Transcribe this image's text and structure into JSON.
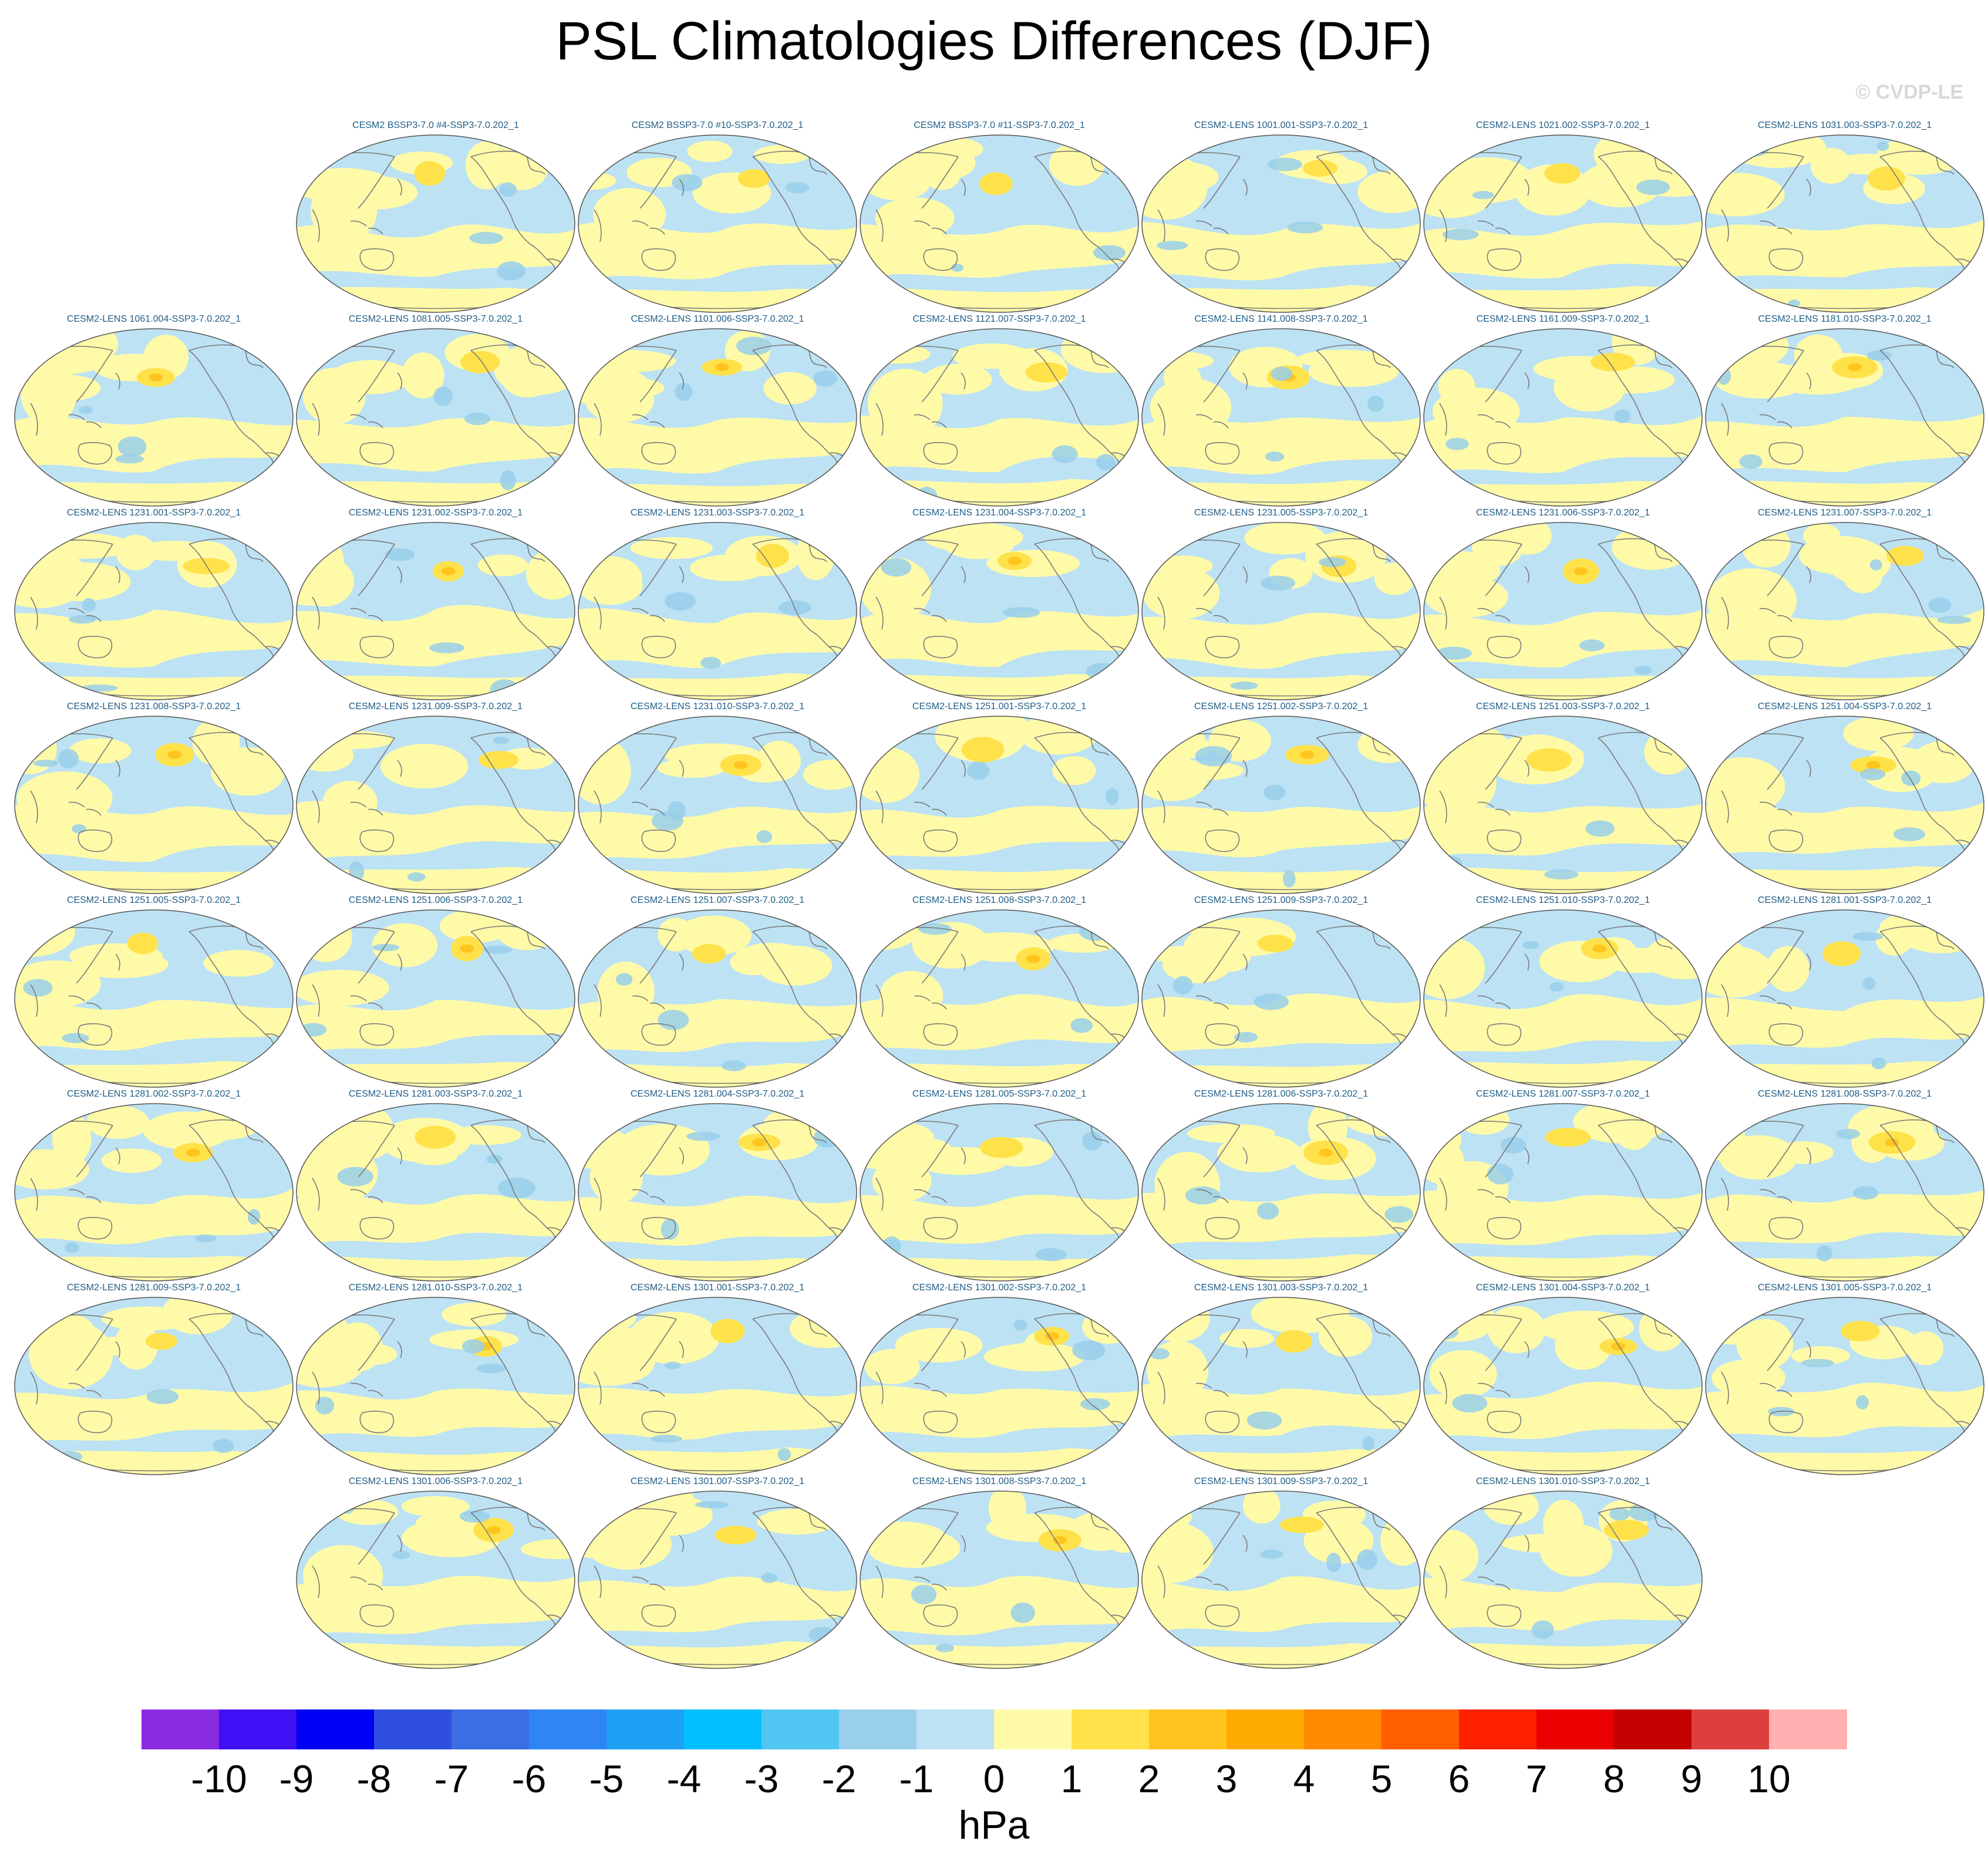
{
  "title": "PSL Climatologies Differences (DJF)",
  "watermark": "© CVDP-LE",
  "map": {
    "projection": "Robinson (Pacific-centered)",
    "icon": "world-map-icon",
    "panels": [
      {
        "label": "CESM2 BSSP3-7.0 #4-SSP3-7.0.202_1",
        "row": 0,
        "col": 1
      },
      {
        "label": "CESM2 BSSP3-7.0 #10-SSP3-7.0.202_1",
        "row": 0,
        "col": 2
      },
      {
        "label": "CESM2 BSSP3-7.0 #11-SSP3-7.0.202_1",
        "row": 0,
        "col": 3
      },
      {
        "label": "CESM2-LENS 1001.001-SSP3-7.0.202_1",
        "row": 0,
        "col": 4
      },
      {
        "label": "CESM2-LENS 1021.002-SSP3-7.0.202_1",
        "row": 0,
        "col": 5
      },
      {
        "label": "CESM2-LENS 1031.003-SSP3-7.0.202_1",
        "row": 0,
        "col": 6
      },
      {
        "label": "CESM2-LENS 1061.004-SSP3-7.0.202_1",
        "row": 1,
        "col": 0
      },
      {
        "label": "CESM2-LENS 1081.005-SSP3-7.0.202_1",
        "row": 1,
        "col": 1
      },
      {
        "label": "CESM2-LENS 1101.006-SSP3-7.0.202_1",
        "row": 1,
        "col": 2
      },
      {
        "label": "CESM2-LENS 1121.007-SSP3-7.0.202_1",
        "row": 1,
        "col": 3
      },
      {
        "label": "CESM2-LENS 1141.008-SSP3-7.0.202_1",
        "row": 1,
        "col": 4
      },
      {
        "label": "CESM2-LENS 1161.009-SSP3-7.0.202_1",
        "row": 1,
        "col": 5
      },
      {
        "label": "CESM2-LENS 1181.010-SSP3-7.0.202_1",
        "row": 1,
        "col": 6
      },
      {
        "label": "CESM2-LENS 1231.001-SSP3-7.0.202_1",
        "row": 2,
        "col": 0
      },
      {
        "label": "CESM2-LENS 1231.002-SSP3-7.0.202_1",
        "row": 2,
        "col": 1
      },
      {
        "label": "CESM2-LENS 1231.003-SSP3-7.0.202_1",
        "row": 2,
        "col": 2
      },
      {
        "label": "CESM2-LENS 1231.004-SSP3-7.0.202_1",
        "row": 2,
        "col": 3
      },
      {
        "label": "CESM2-LENS 1231.005-SSP3-7.0.202_1",
        "row": 2,
        "col": 4
      },
      {
        "label": "CESM2-LENS 1231.006-SSP3-7.0.202_1",
        "row": 2,
        "col": 5
      },
      {
        "label": "CESM2-LENS 1231.007-SSP3-7.0.202_1",
        "row": 2,
        "col": 6
      },
      {
        "label": "CESM2-LENS 1231.008-SSP3-7.0.202_1",
        "row": 3,
        "col": 0
      },
      {
        "label": "CESM2-LENS 1231.009-SSP3-7.0.202_1",
        "row": 3,
        "col": 1
      },
      {
        "label": "CESM2-LENS 1231.010-SSP3-7.0.202_1",
        "row": 3,
        "col": 2
      },
      {
        "label": "CESM2-LENS 1251.001-SSP3-7.0.202_1",
        "row": 3,
        "col": 3
      },
      {
        "label": "CESM2-LENS 1251.002-SSP3-7.0.202_1",
        "row": 3,
        "col": 4
      },
      {
        "label": "CESM2-LENS 1251.003-SSP3-7.0.202_1",
        "row": 3,
        "col": 5
      },
      {
        "label": "CESM2-LENS 1251.004-SSP3-7.0.202_1",
        "row": 3,
        "col": 6
      },
      {
        "label": "CESM2-LENS 1251.005-SSP3-7.0.202_1",
        "row": 4,
        "col": 0
      },
      {
        "label": "CESM2-LENS 1251.006-SSP3-7.0.202_1",
        "row": 4,
        "col": 1
      },
      {
        "label": "CESM2-LENS 1251.007-SSP3-7.0.202_1",
        "row": 4,
        "col": 2
      },
      {
        "label": "CESM2-LENS 1251.008-SSP3-7.0.202_1",
        "row": 4,
        "col": 3
      },
      {
        "label": "CESM2-LENS 1251.009-SSP3-7.0.202_1",
        "row": 4,
        "col": 4
      },
      {
        "label": "CESM2-LENS 1251.010-SSP3-7.0.202_1",
        "row": 4,
        "col": 5
      },
      {
        "label": "CESM2-LENS 1281.001-SSP3-7.0.202_1",
        "row": 4,
        "col": 6
      },
      {
        "label": "CESM2-LENS 1281.002-SSP3-7.0.202_1",
        "row": 5,
        "col": 0
      },
      {
        "label": "CESM2-LENS 1281.003-SSP3-7.0.202_1",
        "row": 5,
        "col": 1
      },
      {
        "label": "CESM2-LENS 1281.004-SSP3-7.0.202_1",
        "row": 5,
        "col": 2
      },
      {
        "label": "CESM2-LENS 1281.005-SSP3-7.0.202_1",
        "row": 5,
        "col": 3
      },
      {
        "label": "CESM2-LENS 1281.006-SSP3-7.0.202_1",
        "row": 5,
        "col": 4
      },
      {
        "label": "CESM2-LENS 1281.007-SSP3-7.0.202_1",
        "row": 5,
        "col": 5
      },
      {
        "label": "CESM2-LENS 1281.008-SSP3-7.0.202_1",
        "row": 5,
        "col": 6
      },
      {
        "label": "CESM2-LENS 1281.009-SSP3-7.0.202_1",
        "row": 6,
        "col": 0
      },
      {
        "label": "CESM2-LENS 1281.010-SSP3-7.0.202_1",
        "row": 6,
        "col": 1
      },
      {
        "label": "CESM2-LENS 1301.001-SSP3-7.0.202_1",
        "row": 6,
        "col": 2
      },
      {
        "label": "CESM2-LENS 1301.002-SSP3-7.0.202_1",
        "row": 6,
        "col": 3
      },
      {
        "label": "CESM2-LENS 1301.003-SSP3-7.0.202_1",
        "row": 6,
        "col": 4
      },
      {
        "label": "CESM2-LENS 1301.004-SSP3-7.0.202_1",
        "row": 6,
        "col": 5
      },
      {
        "label": "CESM2-LENS 1301.005-SSP3-7.0.202_1",
        "row": 6,
        "col": 6
      },
      {
        "label": "CESM2-LENS 1301.006-SSP3-7.0.202_1",
        "row": 7,
        "col": 1
      },
      {
        "label": "CESM2-LENS 1301.007-SSP3-7.0.202_1",
        "row": 7,
        "col": 2
      },
      {
        "label": "CESM2-LENS 1301.008-SSP3-7.0.202_1",
        "row": 7,
        "col": 3
      },
      {
        "label": "CESM2-LENS 1301.009-SSP3-7.0.202_1",
        "row": 7,
        "col": 4
      },
      {
        "label": "CESM2-LENS 1301.010-SSP3-7.0.202_1",
        "row": 7,
        "col": 5
      }
    ]
  },
  "colorbar": {
    "units": "hPa",
    "tick_labels": [
      "-10",
      "-9",
      "-8",
      "-7",
      "-6",
      "-5",
      "-4",
      "-3",
      "-2",
      "-1",
      "0",
      "1",
      "2",
      "3",
      "4",
      "5",
      "6",
      "7",
      "8",
      "9",
      "10"
    ],
    "colors": [
      "#8a2be2",
      "#3f0ff5",
      "#0000f5",
      "#2e4fe0",
      "#3b6ee2",
      "#2f86f2",
      "#1ea0f5",
      "#00c0ff",
      "#52c6f2",
      "#99cfea",
      "#bde2f4",
      "#fffaa8",
      "#ffe24a",
      "#ffc51e",
      "#ffaa00",
      "#ff8a00",
      "#ff5f00",
      "#ff2000",
      "#ea0000",
      "#c40000",
      "#dd3e3e",
      "#ffb0b0"
    ]
  },
  "palette": {
    "ocean_neg": "#bde2f4",
    "neg_deep": "#99cfea",
    "pos_light": "#fffaa8",
    "pos_mid": "#ffe24a",
    "pos_strong": "#ffc51e",
    "coast": "#7a7a7a",
    "outline": "#555555"
  }
}
